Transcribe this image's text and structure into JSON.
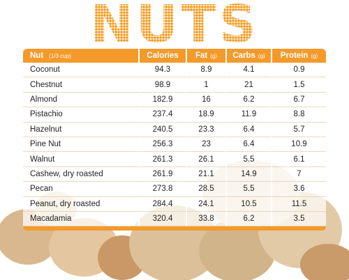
{
  "title": "NUTS",
  "table": {
    "header": [
      {
        "label": "Nut",
        "unit": "(1/3 cup)"
      },
      {
        "label": "Calories"
      },
      {
        "label": "Fat",
        "unit": "(g)"
      },
      {
        "label": "Carbs",
        "unit": "(g)"
      },
      {
        "label": "Protein",
        "unit": "(g)"
      }
    ],
    "rows": [
      [
        "Coconut",
        "94.3",
        "8.9",
        "4.1",
        "0.9"
      ],
      [
        "Chestnut",
        "98.9",
        "1",
        "21",
        "1.5"
      ],
      [
        "Almond",
        "182.9",
        "16",
        "6.2",
        "6.7"
      ],
      [
        "Pistachio",
        "237.4",
        "18.9",
        "11.9",
        "8.8"
      ],
      [
        "Hazelnut",
        "240.5",
        "23.3",
        "6.4",
        "5.7"
      ],
      [
        "Pine Nut",
        "256.3",
        "23",
        "6.4",
        "10.9"
      ],
      [
        "Walnut",
        "261.3",
        "26.1",
        "5.5",
        "6.1"
      ],
      [
        "Cashew, dry roasted",
        "261.9",
        "21.1",
        "14.9",
        "7"
      ],
      [
        "Pecan",
        "273.8",
        "28.5",
        "5.5",
        "3.6"
      ],
      [
        "Peanut, dry roasted",
        "284.4",
        "24.1",
        "10.5",
        "11.5"
      ],
      [
        "Macadamia",
        "320.4",
        "33.8",
        "6.2",
        "3.5"
      ]
    ]
  }
}
